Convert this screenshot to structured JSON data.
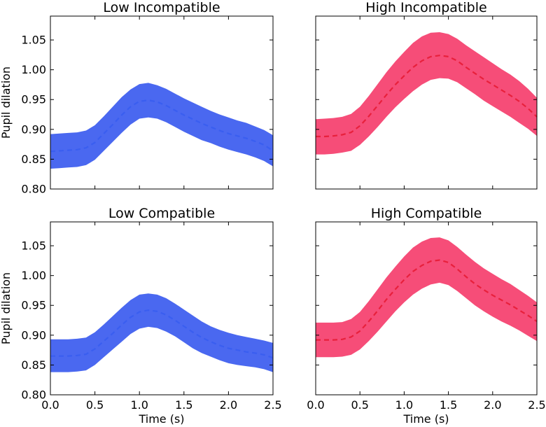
{
  "figure": {
    "ylabel": "Pupil dilation",
    "xlabel": "Time (s)"
  },
  "chart_data": [
    {
      "type": "area",
      "title": "Low Incompatible",
      "xlabel": "",
      "ylabel": "Pupil dilation",
      "xlim": [
        0.0,
        2.5
      ],
      "ylim": [
        0.8,
        1.09
      ],
      "xticks": [
        "0.0",
        "0.5",
        "1.0",
        "1.5",
        "2.0",
        "2.5"
      ],
      "yticks": [
        "0.80",
        "0.85",
        "0.90",
        "0.95",
        "1.00",
        "1.05"
      ],
      "color": "#3a5ef0",
      "band_color": "#4a68f0",
      "x": [
        0.0,
        0.1,
        0.2,
        0.3,
        0.4,
        0.5,
        0.6,
        0.7,
        0.8,
        0.9,
        1.0,
        1.1,
        1.2,
        1.3,
        1.4,
        1.5,
        1.6,
        1.7,
        1.8,
        1.9,
        2.0,
        2.1,
        2.2,
        2.3,
        2.4,
        2.5
      ],
      "mean": [
        0.863,
        0.864,
        0.865,
        0.866,
        0.869,
        0.878,
        0.893,
        0.908,
        0.924,
        0.938,
        0.947,
        0.949,
        0.946,
        0.94,
        0.932,
        0.924,
        0.917,
        0.91,
        0.904,
        0.898,
        0.893,
        0.889,
        0.885,
        0.88,
        0.874,
        0.864
      ],
      "upper": [
        0.892,
        0.893,
        0.894,
        0.895,
        0.898,
        0.907,
        0.922,
        0.938,
        0.954,
        0.967,
        0.976,
        0.978,
        0.974,
        0.968,
        0.96,
        0.952,
        0.945,
        0.938,
        0.931,
        0.925,
        0.92,
        0.915,
        0.911,
        0.905,
        0.899,
        0.89
      ],
      "lower": [
        0.834,
        0.835,
        0.836,
        0.837,
        0.84,
        0.849,
        0.864,
        0.879,
        0.894,
        0.908,
        0.918,
        0.92,
        0.918,
        0.912,
        0.904,
        0.896,
        0.889,
        0.882,
        0.877,
        0.871,
        0.866,
        0.862,
        0.858,
        0.853,
        0.847,
        0.838
      ]
    },
    {
      "type": "area",
      "title": "High Incompatible",
      "xlabel": "",
      "ylabel": "",
      "xlim": [
        0.0,
        2.5
      ],
      "ylim": [
        0.8,
        1.09
      ],
      "xticks": [
        "0.0",
        "0.5",
        "1.0",
        "1.5",
        "2.0",
        "2.5"
      ],
      "yticks": [],
      "color": "#e8203c",
      "band_color": "#f64d78",
      "x": [
        0.0,
        0.1,
        0.2,
        0.3,
        0.4,
        0.5,
        0.6,
        0.7,
        0.8,
        0.9,
        1.0,
        1.1,
        1.2,
        1.3,
        1.4,
        1.5,
        1.6,
        1.7,
        1.8,
        1.9,
        2.0,
        2.1,
        2.2,
        2.3,
        2.4,
        2.5
      ],
      "mean": [
        0.888,
        0.888,
        0.889,
        0.891,
        0.895,
        0.906,
        0.922,
        0.94,
        0.958,
        0.975,
        0.99,
        1.004,
        1.015,
        1.022,
        1.024,
        1.022,
        1.015,
        1.004,
        0.994,
        0.984,
        0.975,
        0.966,
        0.957,
        0.947,
        0.935,
        0.921
      ],
      "upper": [
        0.917,
        0.918,
        0.919,
        0.921,
        0.926,
        0.938,
        0.956,
        0.976,
        0.996,
        1.014,
        1.03,
        1.045,
        1.056,
        1.062,
        1.063,
        1.06,
        1.052,
        1.041,
        1.031,
        1.021,
        1.011,
        1.001,
        0.992,
        0.981,
        0.968,
        0.953
      ],
      "lower": [
        0.858,
        0.858,
        0.859,
        0.861,
        0.864,
        0.874,
        0.888,
        0.904,
        0.921,
        0.937,
        0.951,
        0.964,
        0.975,
        0.983,
        0.986,
        0.985,
        0.979,
        0.969,
        0.959,
        0.948,
        0.939,
        0.93,
        0.921,
        0.911,
        0.901,
        0.889
      ]
    },
    {
      "type": "area",
      "title": "Low Compatible",
      "xlabel": "Time (s)",
      "ylabel": "Pupil dilation",
      "xlim": [
        0.0,
        2.5
      ],
      "ylim": [
        0.8,
        1.09
      ],
      "xticks": [
        "0.0",
        "0.5",
        "1.0",
        "1.5",
        "2.0",
        "2.5"
      ],
      "yticks": [
        "0.80",
        "0.85",
        "0.90",
        "0.95",
        "1.00",
        "1.05"
      ],
      "color": "#3a5ef0",
      "band_color": "#4a68f0",
      "x": [
        0.0,
        0.1,
        0.2,
        0.3,
        0.4,
        0.5,
        0.6,
        0.7,
        0.8,
        0.9,
        1.0,
        1.1,
        1.2,
        1.3,
        1.4,
        1.5,
        1.6,
        1.7,
        1.8,
        1.9,
        2.0,
        2.1,
        2.2,
        2.3,
        2.4,
        2.5
      ],
      "mean": [
        0.865,
        0.865,
        0.865,
        0.866,
        0.868,
        0.877,
        0.89,
        0.903,
        0.917,
        0.93,
        0.939,
        0.942,
        0.94,
        0.934,
        0.925,
        0.915,
        0.905,
        0.896,
        0.889,
        0.883,
        0.878,
        0.875,
        0.872,
        0.87,
        0.867,
        0.862
      ],
      "upper": [
        0.893,
        0.893,
        0.893,
        0.894,
        0.896,
        0.905,
        0.918,
        0.932,
        0.946,
        0.959,
        0.968,
        0.97,
        0.968,
        0.962,
        0.953,
        0.943,
        0.933,
        0.923,
        0.915,
        0.909,
        0.904,
        0.9,
        0.897,
        0.894,
        0.891,
        0.887
      ],
      "lower": [
        0.838,
        0.838,
        0.838,
        0.839,
        0.841,
        0.85,
        0.863,
        0.876,
        0.889,
        0.902,
        0.911,
        0.914,
        0.912,
        0.906,
        0.898,
        0.888,
        0.878,
        0.87,
        0.864,
        0.858,
        0.853,
        0.85,
        0.848,
        0.846,
        0.843,
        0.838
      ]
    },
    {
      "type": "area",
      "title": "High Compatible",
      "xlabel": "Time (s)",
      "ylabel": "",
      "xlim": [
        0.0,
        2.5
      ],
      "ylim": [
        0.8,
        1.09
      ],
      "xticks": [
        "0.0",
        "0.5",
        "1.0",
        "1.5",
        "2.0",
        "2.5"
      ],
      "yticks": [],
      "color": "#e8203c",
      "band_color": "#f64d78",
      "x": [
        0.0,
        0.1,
        0.2,
        0.3,
        0.4,
        0.5,
        0.6,
        0.7,
        0.8,
        0.9,
        1.0,
        1.1,
        1.2,
        1.3,
        1.4,
        1.5,
        1.6,
        1.7,
        1.8,
        1.9,
        2.0,
        2.1,
        2.2,
        2.3,
        2.4,
        2.5
      ],
      "mean": [
        0.892,
        0.892,
        0.892,
        0.893,
        0.897,
        0.907,
        0.923,
        0.941,
        0.96,
        0.977,
        0.993,
        1.007,
        1.017,
        1.024,
        1.026,
        1.022,
        1.011,
        0.998,
        0.986,
        0.976,
        0.967,
        0.959,
        0.951,
        0.942,
        0.933,
        0.923
      ],
      "upper": [
        0.921,
        0.921,
        0.921,
        0.922,
        0.927,
        0.939,
        0.957,
        0.977,
        0.997,
        1.015,
        1.032,
        1.047,
        1.057,
        1.063,
        1.064,
        1.059,
        1.048,
        1.035,
        1.023,
        1.012,
        1.003,
        0.994,
        0.986,
        0.976,
        0.966,
        0.955
      ],
      "lower": [
        0.863,
        0.863,
        0.863,
        0.864,
        0.867,
        0.876,
        0.89,
        0.906,
        0.923,
        0.94,
        0.955,
        0.968,
        0.978,
        0.985,
        0.988,
        0.984,
        0.974,
        0.962,
        0.95,
        0.94,
        0.931,
        0.923,
        0.916,
        0.908,
        0.899,
        0.89
      ]
    }
  ]
}
